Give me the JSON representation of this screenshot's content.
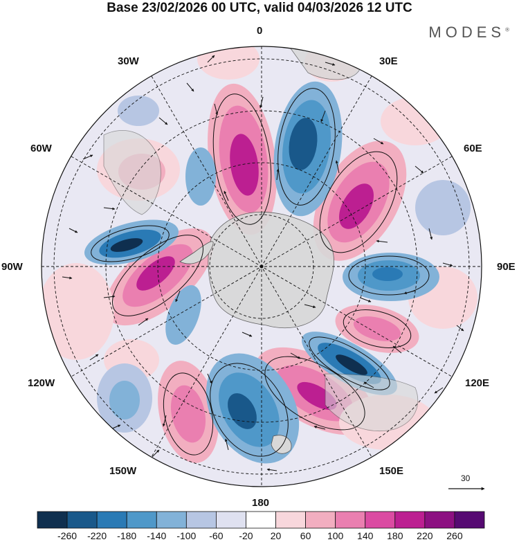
{
  "title": "Base 23/02/2026 00 UTC, valid 04/03/2026 12 UTC",
  "brand": "MODES",
  "brand_mark": "®",
  "longitude_labels": {
    "top": "0",
    "top_right": "30E",
    "right_upper": "60E",
    "right": "90E",
    "right_lower": "120E",
    "bottom_right": "150E",
    "bottom": "180",
    "bottom_left": "150W",
    "left_lower": "120W",
    "left": "90W",
    "left_upper": "60W",
    "top_left": "30W"
  },
  "vector_reference": "30",
  "colorbar": {
    "ticks": [
      "-260",
      "-220",
      "-180",
      "-140",
      "-100",
      "-60",
      "-20",
      "20",
      "60",
      "100",
      "140",
      "180",
      "220",
      "260"
    ],
    "colors": [
      "#0f2f4f",
      "#19588a",
      "#2a7ab5",
      "#4f98c9",
      "#82b2d8",
      "#b7c6e3",
      "#dfe1f0",
      "#ffffff",
      "#f8d7dc",
      "#f2aec0",
      "#ea7fb0",
      "#db4ba2",
      "#bc1f91",
      "#8c1081",
      "#560a72"
    ]
  },
  "colors": {
    "land": "#d8d8d8",
    "coast": "#555555"
  }
}
